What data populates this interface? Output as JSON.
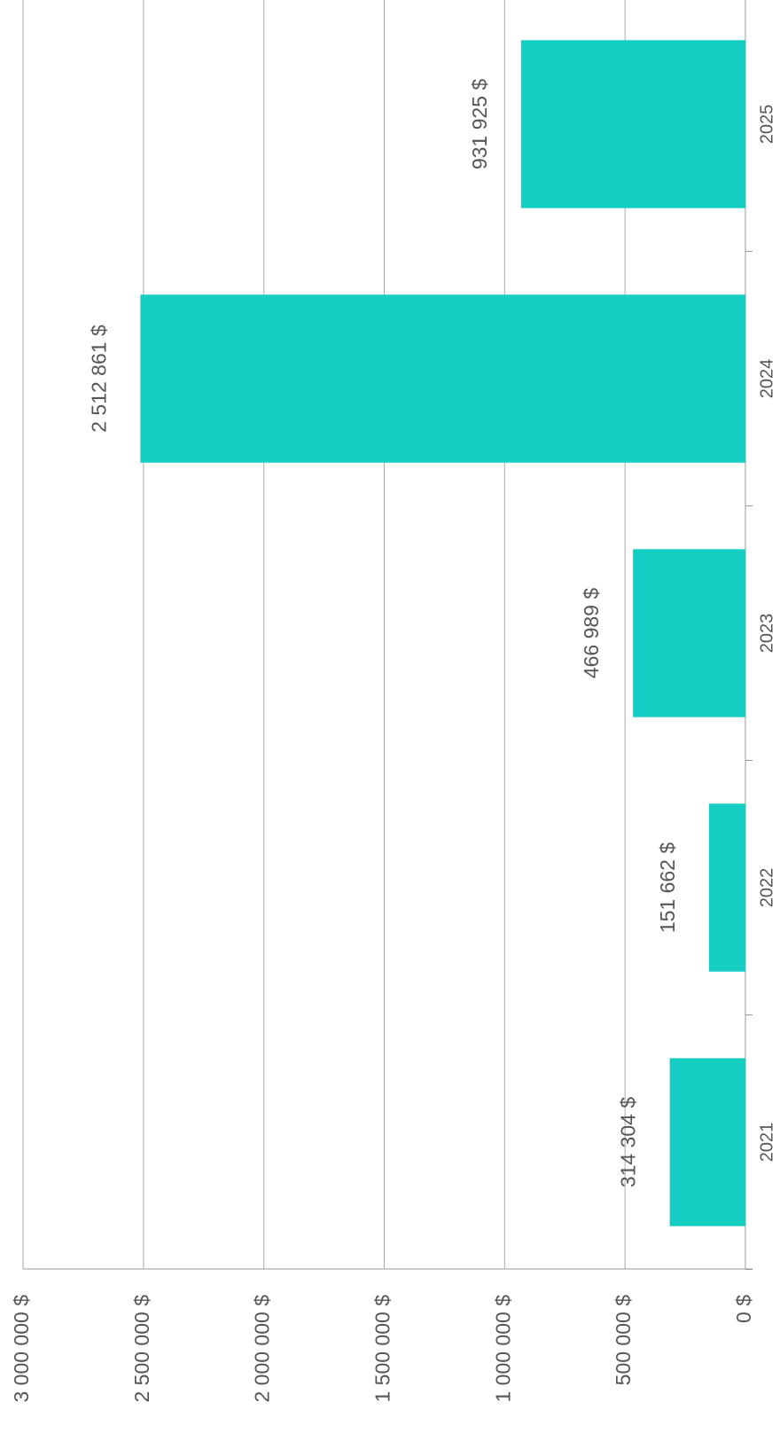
{
  "chart_data": {
    "type": "bar",
    "categories": [
      "2021",
      "2022",
      "2023",
      "2024",
      "2025"
    ],
    "values": [
      314304,
      151662,
      466989,
      2512861,
      931925
    ],
    "value_labels": [
      "314 304 $",
      "151 662 $",
      "466 989 $",
      "2 512 861 $",
      "931 925 $"
    ],
    "color": "#14cec3",
    "ylim": [
      0,
      3000000
    ],
    "yticks": [
      {
        "value": 0,
        "label": "0 $"
      },
      {
        "value": 500000,
        "label": "500 000 $"
      },
      {
        "value": 1000000,
        "label": "1 000 000 $"
      },
      {
        "value": 1500000,
        "label": "1 500 000 $"
      },
      {
        "value": 2000000,
        "label": "2 000 000 $"
      },
      {
        "value": 2500000,
        "label": "2 500 000 $"
      },
      {
        "value": 3000000,
        "label": "3 000 000 $"
      }
    ],
    "grid": true
  }
}
